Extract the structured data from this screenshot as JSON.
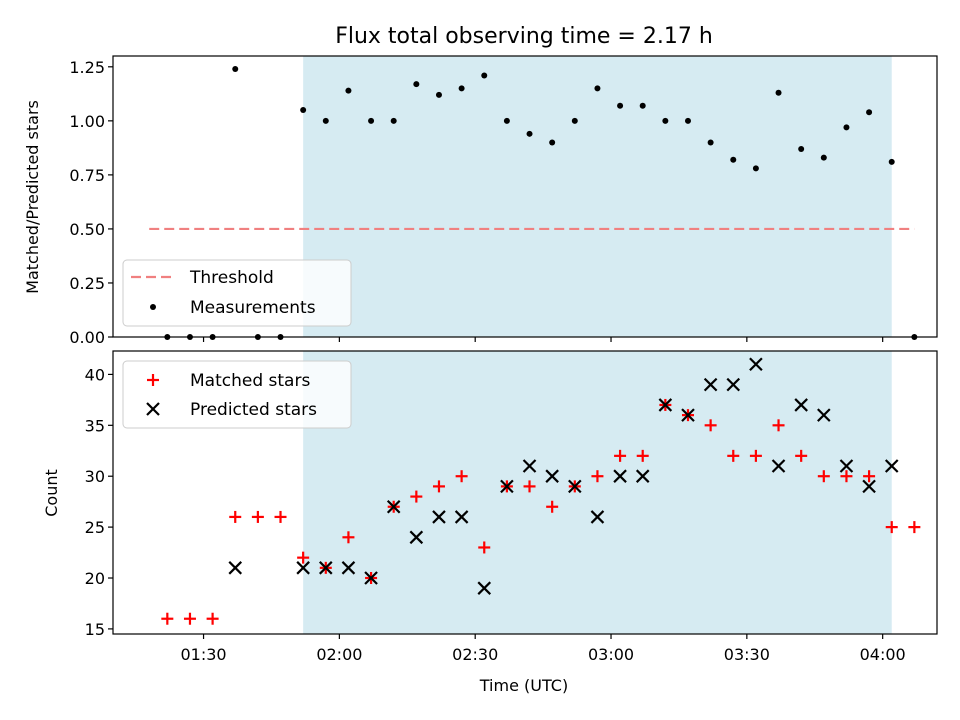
{
  "chart_data": [
    {
      "type": "scatter",
      "title": "Flux total observing time = 2.17 h",
      "xlabel": "",
      "ylabel": "Matched/Predicted stars",
      "ylim": [
        0.0,
        1.3
      ],
      "yticks": [
        "0.00",
        "0.25",
        "0.50",
        "0.75",
        "1.00",
        "1.25"
      ],
      "ytick_values": [
        0.0,
        0.25,
        0.5,
        0.75,
        1.0,
        1.25
      ],
      "xlim": [
        "01:10",
        "04:12"
      ],
      "shaded_span": [
        "01:52",
        "04:02"
      ],
      "shade_color": "#add8e6",
      "legend_position": "lower-left",
      "threshold": {
        "name": "Threshold",
        "value": 0.5,
        "x_start": "01:18",
        "x_end": "04:07",
        "color": "#f08080"
      },
      "series": [
        {
          "name": "Measurements",
          "color": "#000000",
          "x": [
            "01:22",
            "01:27",
            "01:32",
            "01:37",
            "01:42",
            "01:47",
            "01:52",
            "01:57",
            "02:02",
            "02:07",
            "02:12",
            "02:17",
            "02:22",
            "02:27",
            "02:32",
            "02:37",
            "02:42",
            "02:47",
            "02:52",
            "02:57",
            "03:02",
            "03:07",
            "03:12",
            "03:17",
            "03:22",
            "03:27",
            "03:32",
            "03:37",
            "03:42",
            "03:47",
            "03:52",
            "03:57",
            "04:02",
            "04:07"
          ],
          "y": [
            0,
            0,
            0,
            1.24,
            0,
            0,
            1.05,
            1.0,
            1.14,
            1.0,
            1.0,
            1.17,
            1.12,
            1.15,
            1.21,
            1.0,
            0.94,
            0.9,
            1.0,
            1.15,
            1.07,
            1.07,
            1.0,
            1.0,
            0.9,
            0.82,
            0.78,
            1.13,
            0.87,
            0.83,
            0.97,
            1.04,
            0.81,
            0
          ]
        }
      ]
    },
    {
      "type": "scatter",
      "title": "",
      "xlabel": "Time (UTC)",
      "ylabel": "Count",
      "ylim": [
        14.5,
        42.3
      ],
      "yticks": [
        "15",
        "20",
        "25",
        "30",
        "35",
        "40"
      ],
      "ytick_values": [
        15,
        20,
        25,
        30,
        35,
        40
      ],
      "xlim": [
        "01:10",
        "04:12"
      ],
      "xticks": [
        "01:30",
        "02:00",
        "02:30",
        "03:00",
        "03:30",
        "04:00"
      ],
      "shaded_span": [
        "01:52",
        "04:02"
      ],
      "shade_color": "#add8e6",
      "legend_position": "upper-left",
      "series": [
        {
          "name": "Matched stars",
          "marker": "plus",
          "color": "#ff0000",
          "x": [
            "01:22",
            "01:27",
            "01:32",
            "01:37",
            "01:42",
            "01:47",
            "01:52",
            "01:57",
            "02:02",
            "02:07",
            "02:12",
            "02:17",
            "02:22",
            "02:27",
            "02:32",
            "02:37",
            "02:42",
            "02:47",
            "02:52",
            "02:57",
            "03:02",
            "03:07",
            "03:12",
            "03:17",
            "03:22",
            "03:27",
            "03:32",
            "03:37",
            "03:42",
            "03:47",
            "03:52",
            "03:57",
            "04:02",
            "04:07"
          ],
          "y": [
            16,
            16,
            16,
            26,
            26,
            26,
            22,
            21,
            24,
            20,
            27,
            28,
            29,
            30,
            23,
            29,
            29,
            27,
            29,
            30,
            32,
            32,
            37,
            36,
            35,
            32,
            32,
            35,
            32,
            30,
            30,
            30,
            25,
            25
          ]
        },
        {
          "name": "Predicted stars",
          "marker": "x",
          "color": "#000000",
          "x": [
            "01:37",
            "01:52",
            "01:57",
            "02:02",
            "02:07",
            "02:12",
            "02:17",
            "02:22",
            "02:27",
            "02:32",
            "02:37",
            "02:42",
            "02:47",
            "02:52",
            "02:57",
            "03:02",
            "03:07",
            "03:12",
            "03:17",
            "03:22",
            "03:27",
            "03:32",
            "03:37",
            "03:42",
            "03:47",
            "03:52",
            "03:57",
            "04:02"
          ],
          "y": [
            21,
            21,
            21,
            21,
            20,
            27,
            24,
            26,
            26,
            19,
            29,
            31,
            30,
            29,
            26,
            30,
            30,
            37,
            36,
            39,
            39,
            41,
            31,
            37,
            36,
            31,
            29,
            31
          ]
        }
      ]
    }
  ]
}
